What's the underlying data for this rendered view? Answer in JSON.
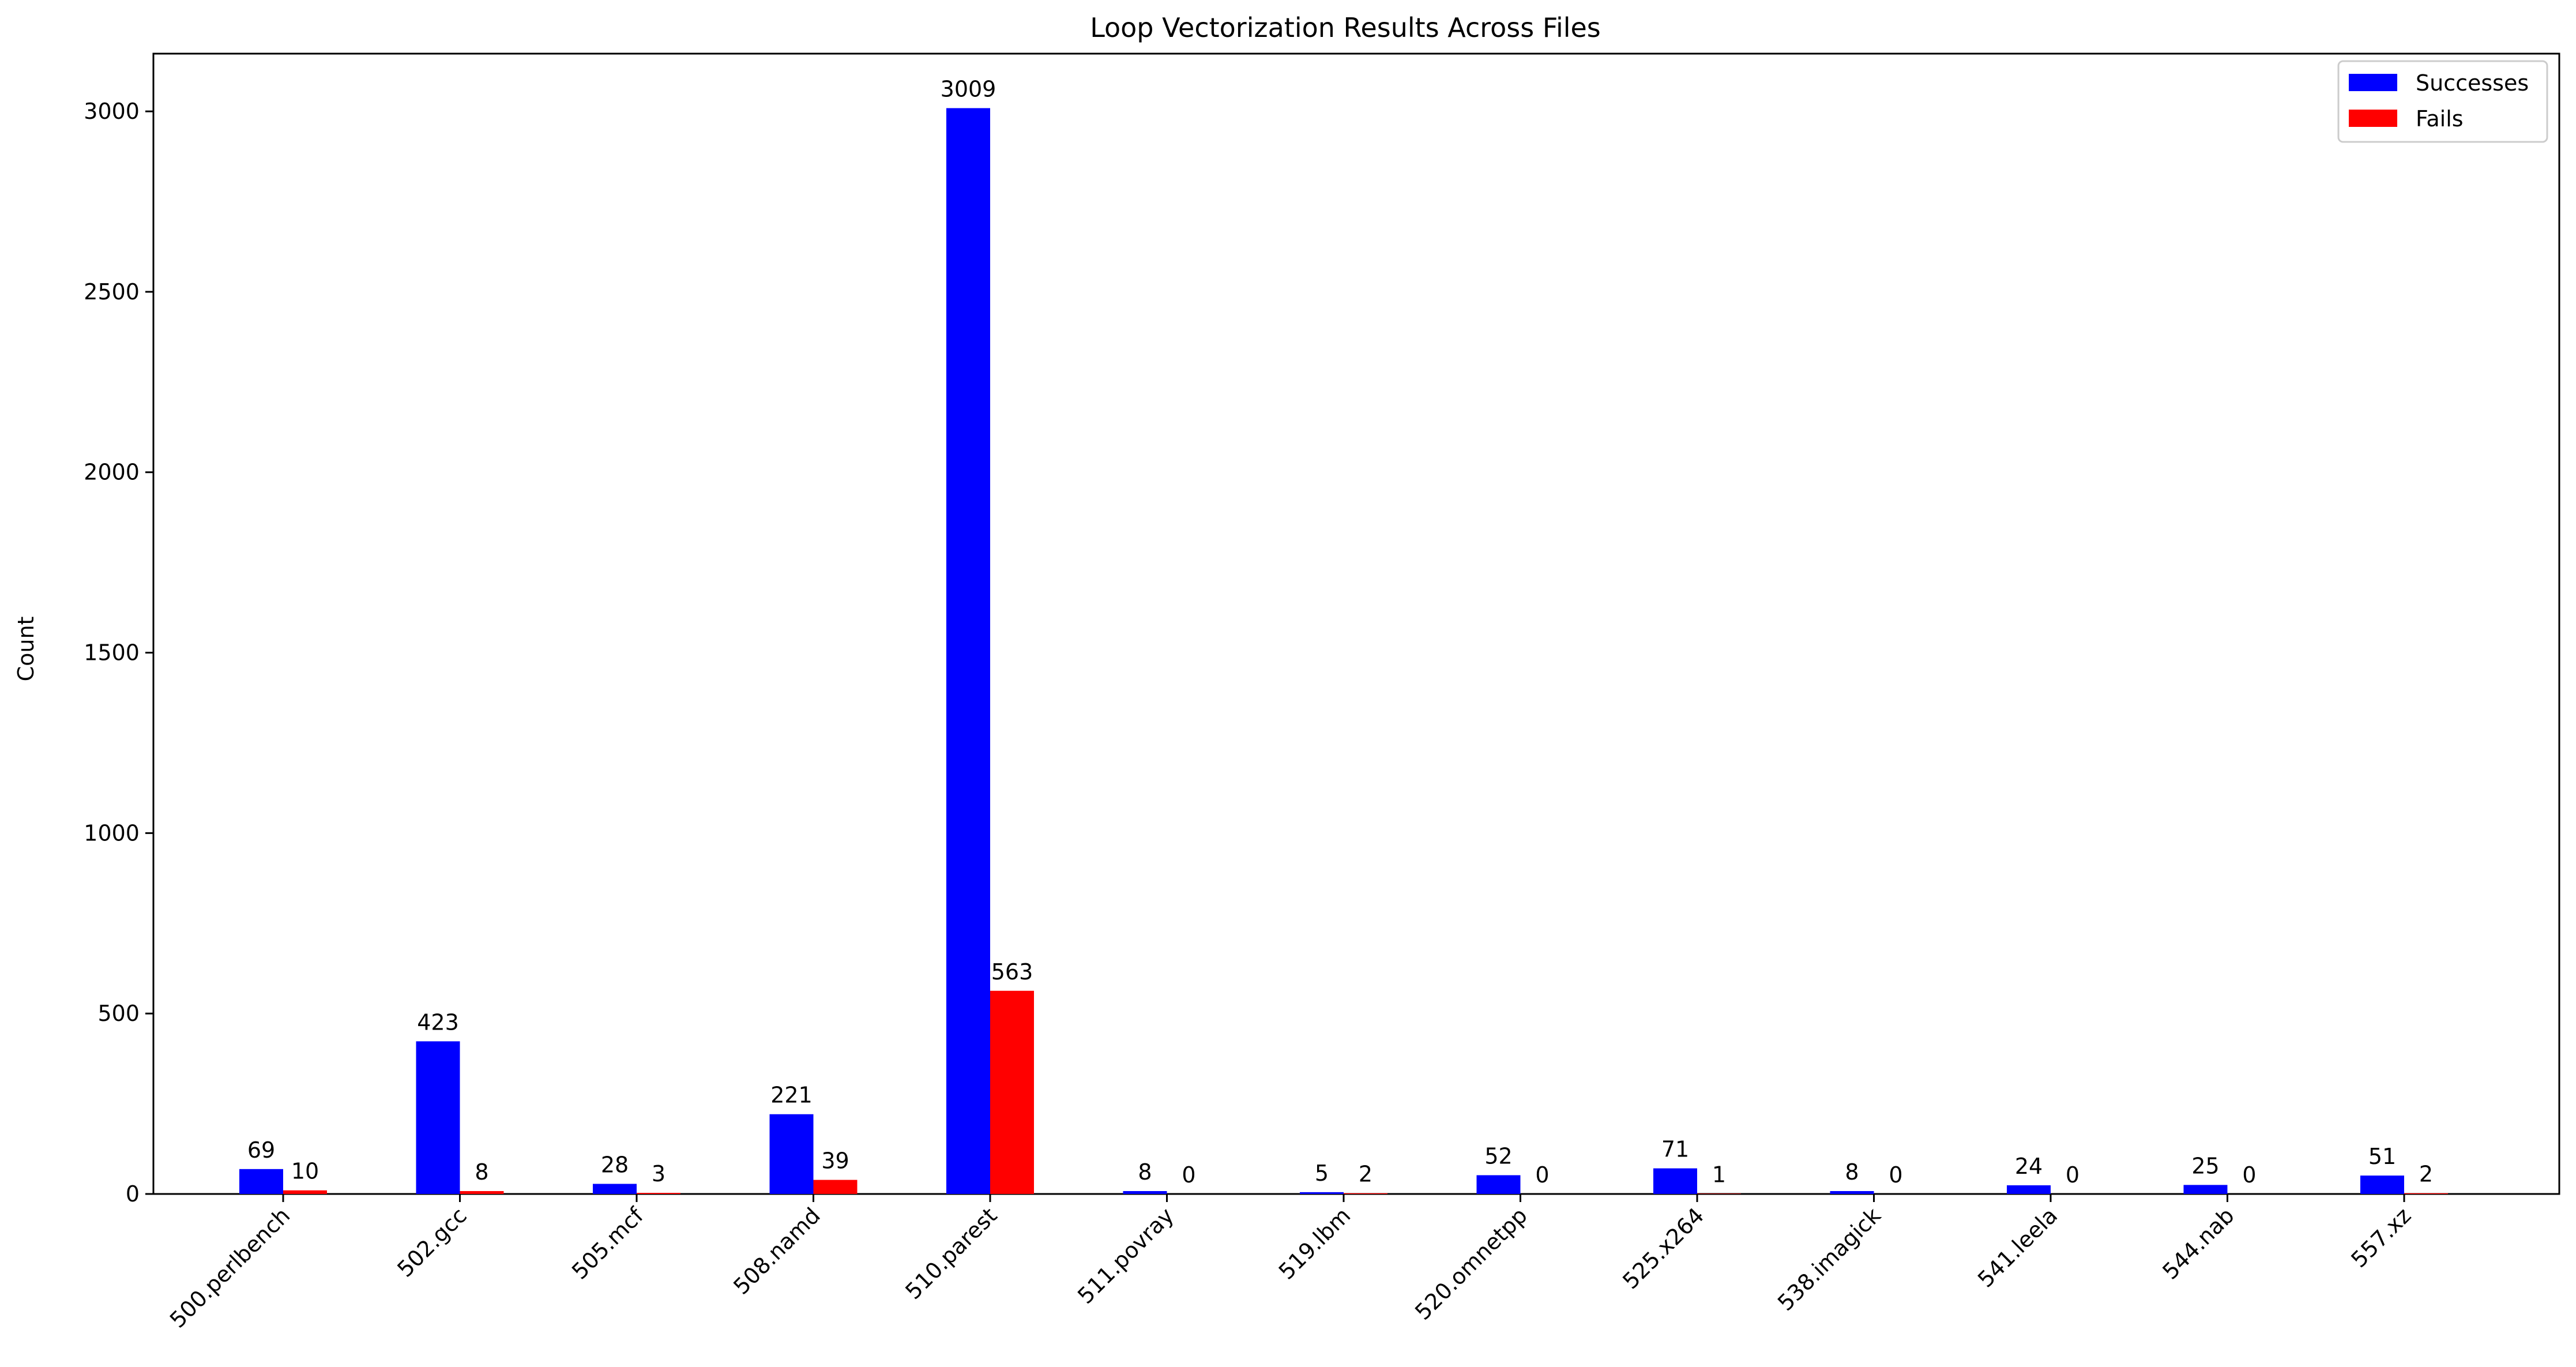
{
  "chart_data": {
    "type": "bar",
    "title": "Loop Vectorization Results Across Files",
    "xlabel": "",
    "ylabel": "Count",
    "ylim": [
      0,
      3160
    ],
    "yticks": [
      0,
      500,
      1000,
      1500,
      2000,
      2500,
      3000
    ],
    "grid": false,
    "legend_position": "top-right",
    "categories": [
      "500.perlbench",
      "502.gcc",
      "505.mcf",
      "508.namd",
      "510.parest",
      "511.povray",
      "519.lbm",
      "520.omnetpp",
      "525.x264",
      "538.imagick",
      "541.leela",
      "544.nab",
      "557.xz"
    ],
    "series": [
      {
        "name": "Successes",
        "color": "#0000ff",
        "values": [
          69,
          423,
          28,
          221,
          3009,
          8,
          5,
          52,
          71,
          8,
          24,
          25,
          51
        ]
      },
      {
        "name": "Fails",
        "color": "#ff0000",
        "values": [
          10,
          8,
          3,
          39,
          563,
          0,
          2,
          0,
          1,
          0,
          0,
          0,
          2
        ]
      }
    ]
  }
}
